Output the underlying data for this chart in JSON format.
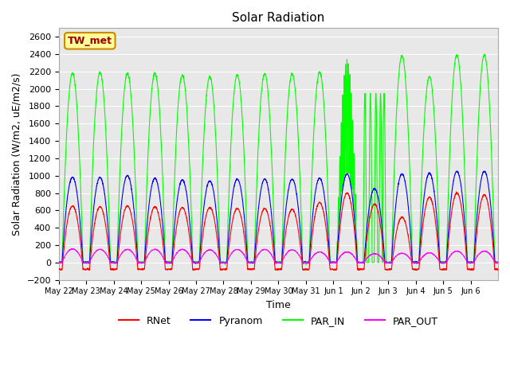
{
  "title": "Solar Radiation",
  "ylabel": "Solar Radiation (W/m2, uE/m2/s)",
  "xlabel": "Time",
  "ylim": [
    -200,
    2700
  ],
  "yticks": [
    -200,
    0,
    200,
    400,
    600,
    800,
    1000,
    1200,
    1400,
    1600,
    1800,
    2000,
    2200,
    2400,
    2600
  ],
  "xtick_labels": [
    "May 22",
    "May 23",
    "May 24",
    "May 25",
    "May 26",
    "May 27",
    "May 28",
    "May 29",
    "May 30",
    "May 31",
    "Jun 1",
    "Jun 2",
    "Jun 3",
    "Jun 4",
    "Jun 5",
    "Jun 6"
  ],
  "colors": {
    "RNet": "#ff0000",
    "Pyranom": "#0000ff",
    "PAR_IN": "#00ff00",
    "PAR_OUT": "#ff00ff"
  },
  "series_labels": [
    "RNet",
    "Pyranom",
    "PAR_IN",
    "PAR_OUT"
  ],
  "legend_label": "TW_met",
  "legend_box_color": "#ffff99",
  "legend_box_edge": "#cc8800",
  "legend_text_color": "#990000",
  "background_color": "#e8e8e8",
  "n_days": 16,
  "rnet_peaks": [
    650,
    640,
    650,
    640,
    630,
    630,
    620,
    620,
    610,
    690,
    800,
    670,
    520,
    750,
    800,
    780
  ],
  "pyranom_peaks": [
    980,
    980,
    1000,
    970,
    950,
    940,
    960,
    960,
    960,
    970,
    1020,
    850,
    1020,
    1030,
    1050,
    1050
  ],
  "par_in_peaks": [
    2180,
    2190,
    2180,
    2180,
    2160,
    2140,
    2160,
    2175,
    2175,
    2190,
    2340,
    1950,
    2380,
    2140,
    2390,
    2390
  ],
  "par_out_peaks": [
    155,
    150,
    150,
    150,
    150,
    145,
    150,
    150,
    145,
    120,
    120,
    100,
    105,
    110,
    130,
    130
  ],
  "rnet_night": -80,
  "pyranom_night": 0,
  "par_in_night": 0,
  "par_out_night": 0
}
